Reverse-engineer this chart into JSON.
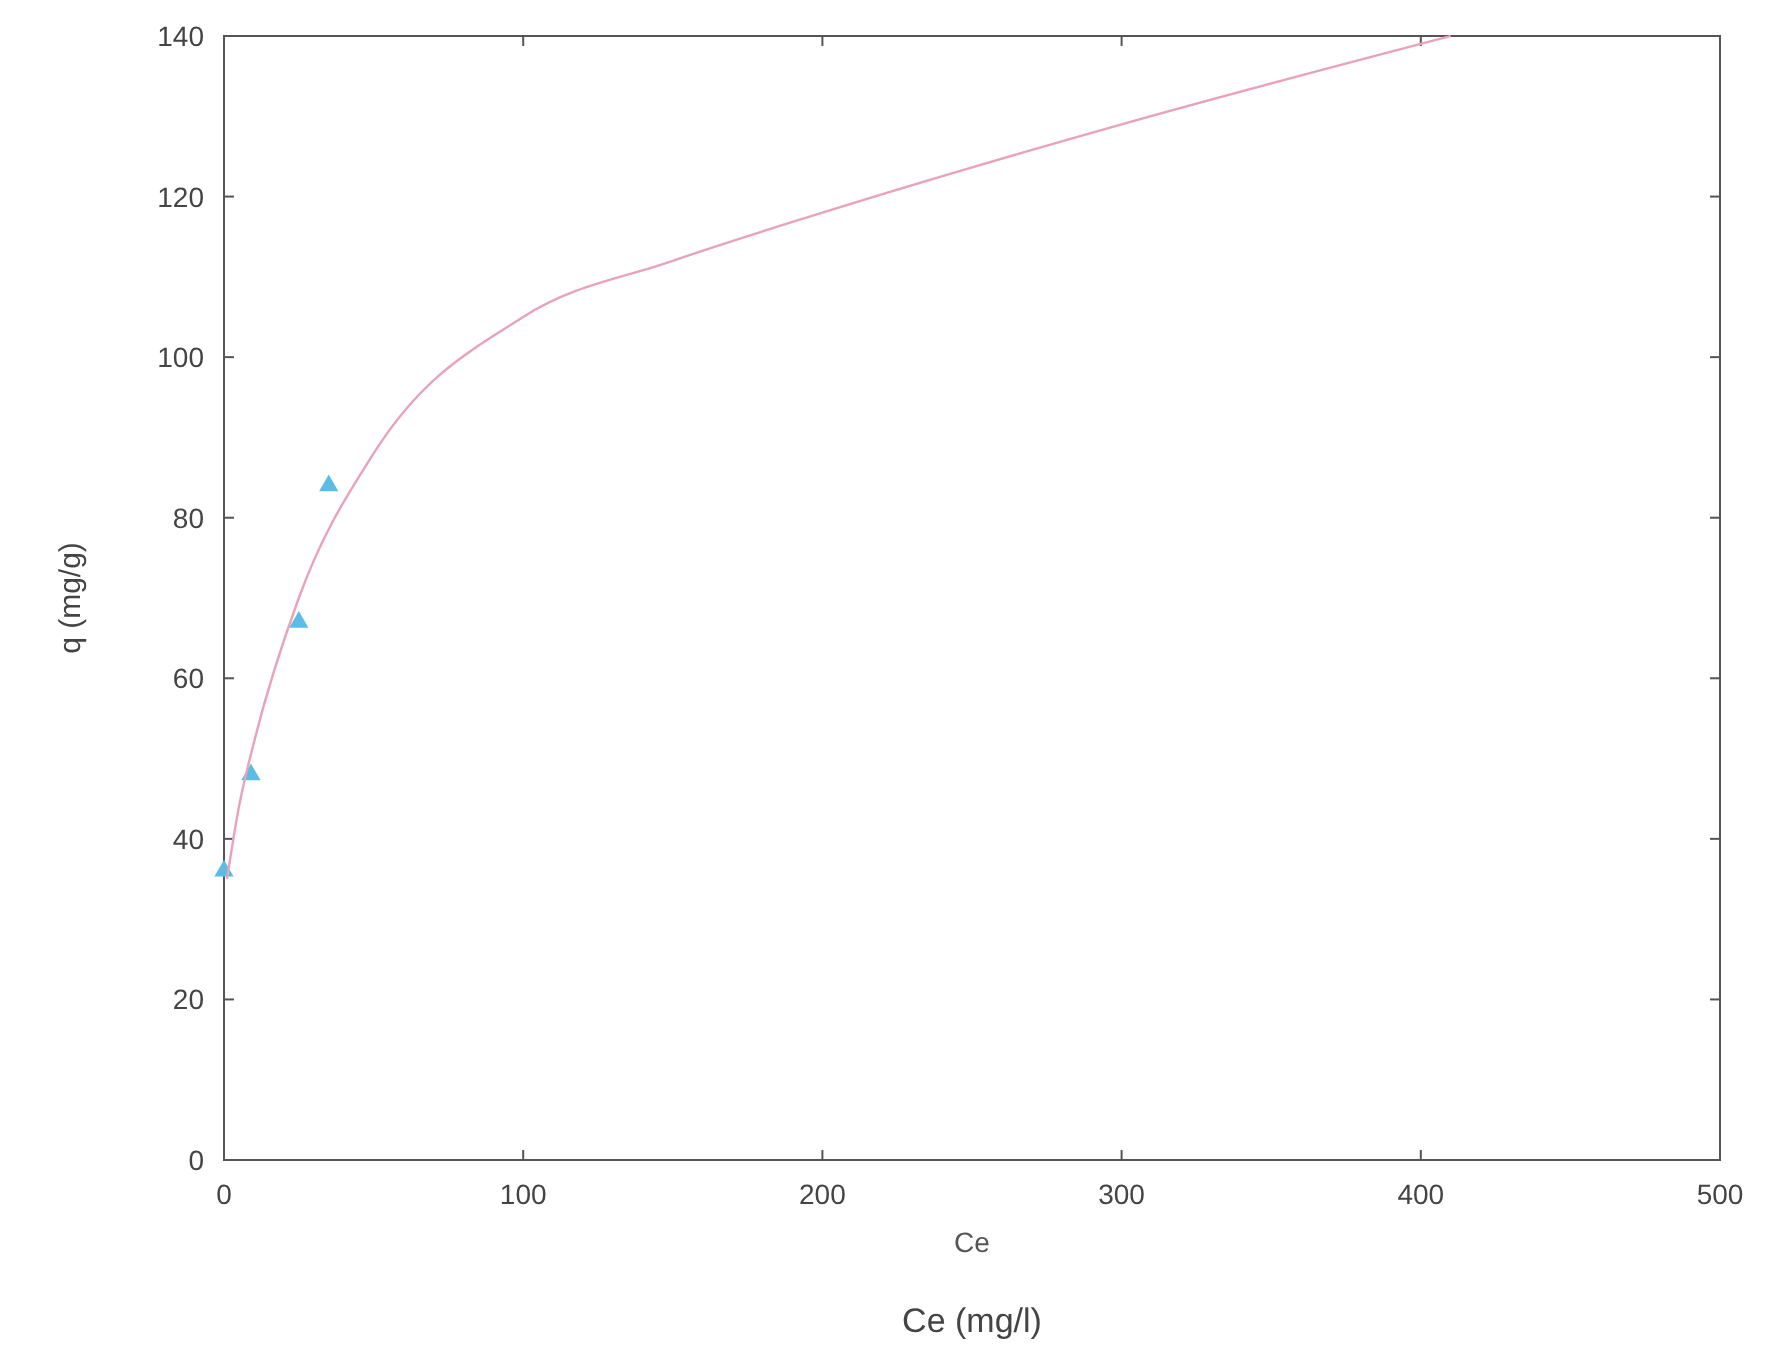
{
  "chart_data": {
    "type": "scatter",
    "xlabel": "Ce",
    "ylabel": "q (mg/g)",
    "annotations": [
      "Ce (mg/l)"
    ],
    "xlim": [
      0,
      500
    ],
    "ylim": [
      0,
      140
    ],
    "xticks": [
      0,
      100,
      200,
      300,
      400,
      500
    ],
    "yticks": [
      0,
      20,
      40,
      60,
      80,
      100,
      120,
      140
    ],
    "grid": false,
    "series": [
      {
        "type": "scatter",
        "color": "#5bbde6",
        "marker": "triangle",
        "x": [
          0,
          9,
          25,
          35
        ],
        "values": [
          36,
          48,
          67,
          84
        ]
      },
      {
        "type": "line",
        "color": "#e8a3b8",
        "marker": "none",
        "line_style": "solid",
        "x": [
          1,
          5,
          10,
          25,
          50,
          100,
          150,
          200,
          300,
          410
        ],
        "values": [
          35,
          44,
          52,
          70,
          88,
          105,
          112,
          118,
          129,
          140
        ]
      }
    ]
  }
}
